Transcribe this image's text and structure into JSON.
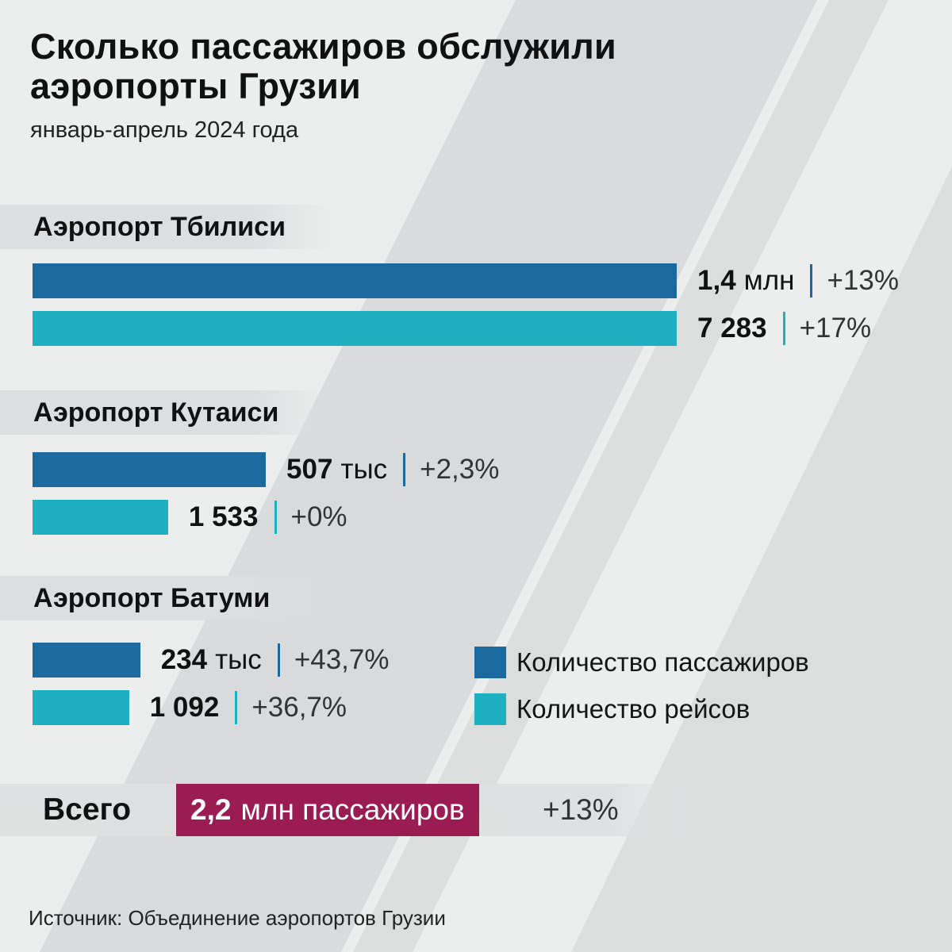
{
  "title": "Сколько пассажиров обслужили аэропорты Грузии",
  "subtitle": "январь-апрель 2024 года",
  "colors": {
    "passengers": "#1a6aa0",
    "flights": "#1eb0c0",
    "total": "#9b1c52"
  },
  "airports": [
    {
      "name": "Аэропорт Тбилиси",
      "passengers": {
        "value_label": "1,4",
        "unit": "млн",
        "change": "+13%"
      },
      "flights": {
        "value_label": "7 283",
        "unit": "",
        "change": "+17%"
      }
    },
    {
      "name": "Аэропорт Кутаиси",
      "passengers": {
        "value_label": "507",
        "unit": "тыс",
        "change": "+2,3%"
      },
      "flights": {
        "value_label": "1 533",
        "unit": "",
        "change": "+0%"
      }
    },
    {
      "name": "Аэропорт Батуми",
      "passengers": {
        "value_label": "234",
        "unit": "тыс",
        "change": "+43,7%"
      },
      "flights": {
        "value_label": "1 092",
        "unit": "",
        "change": "+36,7%"
      }
    }
  ],
  "legend": [
    {
      "label": "Количество пассажиров",
      "color": "#1a6aa0"
    },
    {
      "label": "Количество рейсов",
      "color": "#1eb0c0"
    }
  ],
  "total": {
    "label": "Всего",
    "value": "2,2",
    "text": "млн пассажиров",
    "change": "+13%"
  },
  "source": "Источник: Объединение аэропортов Грузии",
  "chart_data": {
    "type": "bar",
    "orientation": "horizontal",
    "categories": [
      "Аэропорт Тбилиси",
      "Аэропорт Кутаиси",
      "Аэропорт Батуми"
    ],
    "series": [
      {
        "name": "Количество пассажиров",
        "values": [
          1400000,
          507000,
          234000
        ]
      },
      {
        "name": "Количество рейсов",
        "values": [
          7283,
          1533,
          1092
        ]
      }
    ],
    "legend_position": "bottom-right",
    "grid": false
  }
}
